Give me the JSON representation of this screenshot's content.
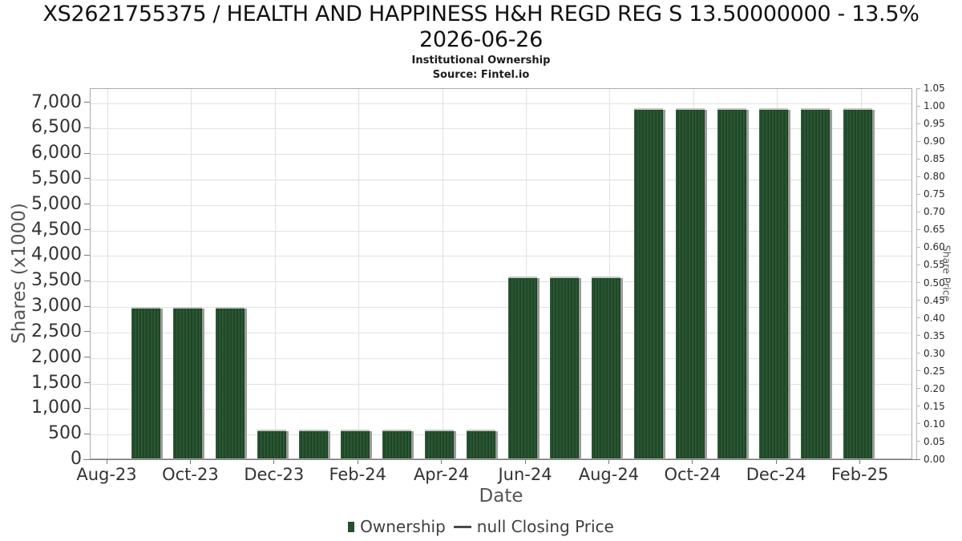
{
  "header": {
    "title_lines": [
      "XS2621755375 / HEALTH AND HAPPINESS H&H REGD REG S 13.50000000 - 13.5%",
      "2026-06-26"
    ],
    "subtitle": "Institutional Ownership",
    "source": "Source: Fintel.io"
  },
  "chart_data": {
    "type": "bar",
    "title": "XS2621755375 / HEALTH AND HAPPINESS H&H REGD REG S 13.50000000 - 13.5% 2026-06-26",
    "subtitle": "Institutional Ownership",
    "source": "Source: Fintel.io",
    "xlabel": "Date",
    "ylabel_left": "Shares (x1000)",
    "ylabel_right": "Share Price",
    "series_name": "Ownership",
    "categories": [
      "Sep-23",
      "Oct-23",
      "Nov-23",
      "Dec-23",
      "Jan-24",
      "Feb-24",
      "Mar-24",
      "Apr-24",
      "May-24",
      "Jun-24",
      "Jul-24",
      "Aug-24",
      "Sep-24",
      "Oct-24",
      "Nov-24",
      "Dec-24",
      "Jan-25",
      "Feb-25"
    ],
    "values": [
      3000,
      3000,
      3000,
      600,
      600,
      600,
      600,
      600,
      600,
      3600,
      3600,
      3600,
      6900,
      6900,
      6900,
      6900,
      6900,
      6900
    ],
    "first_bar_month_offset": 1,
    "x_ticks": [
      {
        "label": "Aug-23",
        "month": 0
      },
      {
        "label": "Oct-23",
        "month": 2
      },
      {
        "label": "Dec-23",
        "month": 4
      },
      {
        "label": "Feb-24",
        "month": 6
      },
      {
        "label": "Apr-24",
        "month": 8
      },
      {
        "label": "Jun-24",
        "month": 10
      },
      {
        "label": "Aug-24",
        "month": 12
      },
      {
        "label": "Oct-24",
        "month": 14
      },
      {
        "label": "Dec-24",
        "month": 16
      },
      {
        "label": "Feb-25",
        "month": 18
      }
    ],
    "left_tick_labels": [
      "0",
      "500",
      "1,000",
      "1,500",
      "2,000",
      "2,500",
      "3,000",
      "3,500",
      "4,000",
      "4,500",
      "5,000",
      "5,500",
      "6,000",
      "6,500",
      "7,000"
    ],
    "right_tick_labels": [
      "0.00",
      "0.05",
      "0.10",
      "0.15",
      "0.20",
      "0.25",
      "0.30",
      "0.35",
      "0.40",
      "0.45",
      "0.50",
      "0.55",
      "0.60",
      "0.65",
      "0.70",
      "0.75",
      "0.80",
      "0.85",
      "0.90",
      "0.95",
      "1.00",
      "1.05"
    ],
    "ylim_left": [
      0,
      7270
    ],
    "ylim_right": [
      0,
      1.05
    ],
    "grid": true,
    "legend_position": "bottom"
  },
  "legend": {
    "items": [
      {
        "label": "Ownership",
        "marker": "square",
        "color": "#254e2c"
      },
      {
        "label": "null Closing Price",
        "marker": "line",
        "color": "#4a4a4a"
      }
    ]
  },
  "colors": {
    "bar_fill": "#254e2c",
    "bar_stripe_dark": "#1b3f22",
    "bar_stripe_light": "#2e5f3a",
    "bar_top_edge": "#c2cbc2",
    "bar_shadow": "#9c9c9c",
    "grid_line": "#e0e0e0",
    "plot_border": "#ababab",
    "axis_line": "#7a7a7a",
    "right_axis_line": "#b5b5b5",
    "tick_text": "#333333",
    "axis_label_text": "#555555",
    "title_text": "#111111"
  }
}
